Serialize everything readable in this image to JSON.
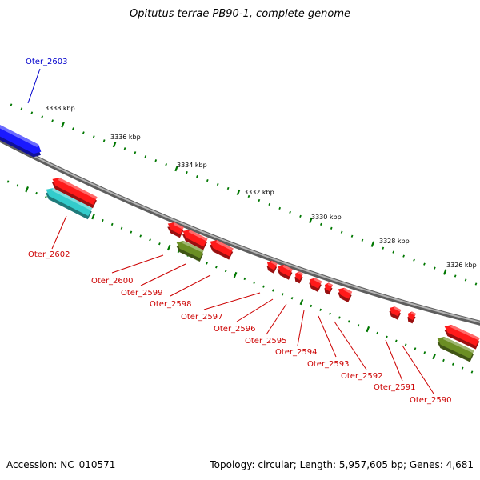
{
  "header": {
    "title": "Opitutus terrae PB90-1, complete genome"
  },
  "footer": {
    "accession": "Accession: NC_010571",
    "summary": "Topology: circular; Length: 5,957,605 bp; Genes: 4,681"
  },
  "colors": {
    "backbone": "#808080",
    "tick": "#007700",
    "gene_red": "#ff1a1a",
    "gene_blue": "#1a1aff",
    "gene_cyan": "#33cccc",
    "gene_olive": "#6b8e23",
    "label_red": "#cc0000",
    "label_blue": "#0000cc"
  },
  "scale_labels": [
    "3338 kbp",
    "3336 kbp",
    "3334 kbp",
    "3332 kbp",
    "3330 kbp",
    "3328 kbp",
    "3326 kbp"
  ],
  "gene_labels": [
    "Oter_2603",
    "Oter_2602",
    "Oter_2600",
    "Oter_2599",
    "Oter_2598",
    "Oter_2597",
    "Oter_2596",
    "Oter_2595",
    "Oter_2594",
    "Oter_2593",
    "Oter_2592",
    "Oter_2591",
    "Oter_2590"
  ]
}
